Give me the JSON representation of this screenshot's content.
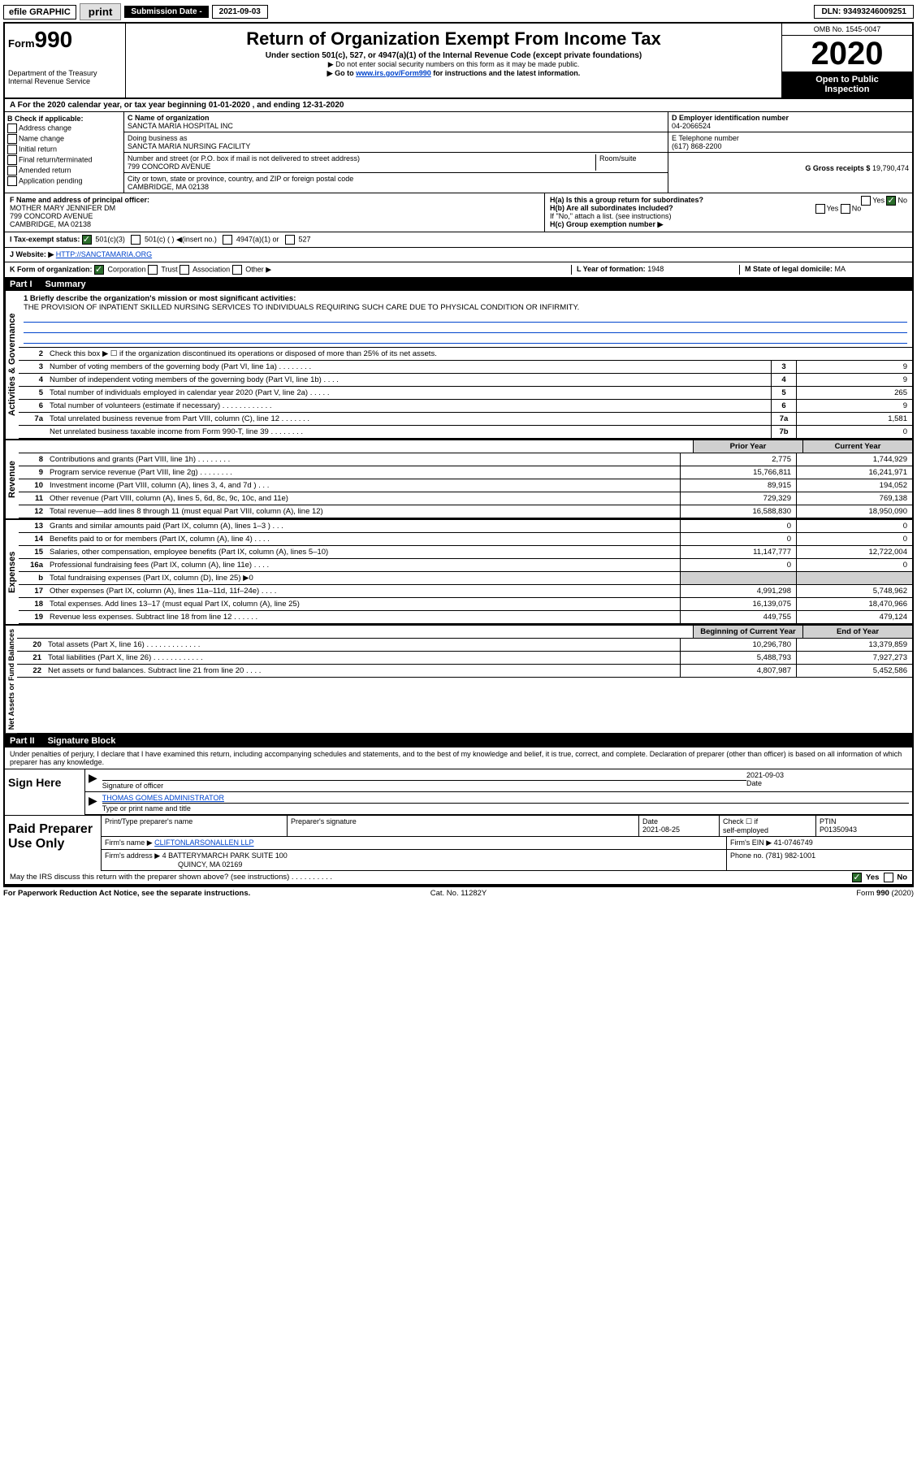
{
  "top": {
    "efile": "efile GRAPHIC",
    "print": "print",
    "sub_label": "Submission Date - ",
    "sub_date": "2021-09-03",
    "dln": "DLN: 93493246009251"
  },
  "header": {
    "form_prefix": "Form",
    "form_num": "990",
    "dept1": "Department of the Treasury",
    "dept2": "Internal Revenue Service",
    "title": "Return of Organization Exempt From Income Tax",
    "sub": "Under section 501(c), 527, or 4947(a)(1) of the Internal Revenue Code (except private foundations)",
    "note1": "▶ Do not enter social security numbers on this form as it may be made public.",
    "note2a": "▶ Go to ",
    "note2_link": "www.irs.gov/Form990",
    "note2b": " for instructions and the latest information.",
    "omb": "OMB No. 1545-0047",
    "year": "2020",
    "open1": "Open to Public",
    "open2": "Inspection"
  },
  "rowA": "A For the 2020 calendar year, or tax year beginning 01-01-2020    , and ending 12-31-2020",
  "b": {
    "label": "B Check if applicable:",
    "items": [
      "Address change",
      "Name change",
      "Initial return",
      "Final return/terminated",
      "Amended return",
      "Application pending"
    ]
  },
  "c": {
    "name_label": "C Name of organization",
    "name": "SANCTA MARIA HOSPITAL INC",
    "dba_label": "Doing business as",
    "dba": "SANCTA MARIA NURSING FACILITY",
    "addr_label": "Number and street (or P.O. box if mail is not delivered to street address)",
    "room_label": "Room/suite",
    "addr": "799 CONCORD AVENUE",
    "city_label": "City or town, state or province, country, and ZIP or foreign postal code",
    "city": "CAMBRIDGE, MA  02138"
  },
  "d": {
    "label": "D Employer identification number",
    "val": "04-2066524"
  },
  "e": {
    "label": "E Telephone number",
    "val": "(617) 868-2200"
  },
  "g": {
    "label": "G Gross receipts $",
    "val": "19,790,474"
  },
  "f": {
    "label": "F  Name and address of principal officer:",
    "line1": "MOTHER MARY JENNIFER DM",
    "line2": "799 CONCORD AVENUE",
    "line3": "CAMBRIDGE, MA  02138"
  },
  "h": {
    "a": "H(a)  Is this a group return for subordinates?",
    "a_yes": "Yes",
    "a_no": "No",
    "b": "H(b)  Are all subordinates included?",
    "b_yes": "Yes",
    "b_no": "No",
    "b_note": "If \"No,\" attach a list. (see instructions)",
    "c": "H(c)  Group exemption number ▶"
  },
  "i": {
    "label": "I    Tax-exempt status:",
    "o1": "501(c)(3)",
    "o2": "501(c) (  ) ◀(insert no.)",
    "o3": "4947(a)(1) or",
    "o4": "527"
  },
  "j": {
    "label": "J    Website: ▶",
    "val": "HTTP://SANCTAMARIA.ORG"
  },
  "k": {
    "label": "K Form of organization:",
    "o1": "Corporation",
    "o2": "Trust",
    "o3": "Association",
    "o4": "Other ▶",
    "l_label": "L Year of formation:",
    "l_val": "1948",
    "m_label": "M State of legal domicile:",
    "m_val": "MA"
  },
  "part1": {
    "pt": "Part I",
    "title": "Summary"
  },
  "summary": {
    "l1_label": "1  Briefly describe the organization's mission or most significant activities:",
    "l1_text": "THE PROVISION OF INPATIENT SKILLED NURSING SERVICES TO INDIVIDUALS REQUIRING SUCH CARE DUE TO PHYSICAL CONDITION OR INFIRMITY.",
    "l2": "Check this box ▶ ☐  if the organization discontinued its operations or disposed of more than 25% of its net assets.",
    "lines_single": [
      {
        "n": "3",
        "d": "Number of voting members of the governing body (Part VI, line 1a)   .    .    .    .    .    .    .    .",
        "b": "3",
        "v": "9"
      },
      {
        "n": "4",
        "d": "Number of independent voting members of the governing body (Part VI, line 1b)   .    .    .    .",
        "b": "4",
        "v": "9"
      },
      {
        "n": "5",
        "d": "Total number of individuals employed in calendar year 2020 (Part V, line 2a)   .    .    .    .    .",
        "b": "5",
        "v": "265"
      },
      {
        "n": "6",
        "d": "Total number of volunteers (estimate if necessary)    .    .    .    .    .    .    .    .    .    .    .    .",
        "b": "6",
        "v": "9"
      },
      {
        "n": "7a",
        "d": "Total unrelated business revenue from Part VIII, column (C), line 12   .    .    .    .    .    .    .",
        "b": "7a",
        "v": "1,581"
      },
      {
        "n": "",
        "d": "Net unrelated business taxable income from Form 990-T, line 39   .    .    .    .    .    .    .    .",
        "b": "7b",
        "v": "0"
      }
    ],
    "yr_prior": "Prior Year",
    "yr_curr": "Current Year",
    "revenue": [
      {
        "n": "8",
        "d": "Contributions and grants (Part VIII, line 1h)   .    .    .    .    .    .    .    .",
        "p": "2,775",
        "c": "1,744,929"
      },
      {
        "n": "9",
        "d": "Program service revenue (Part VIII, line 2g)   .    .    .    .    .    .    .    .",
        "p": "15,766,811",
        "c": "16,241,971"
      },
      {
        "n": "10",
        "d": "Investment income (Part VIII, column (A), lines 3, 4, and 7d )   .    .    .",
        "p": "89,915",
        "c": "194,052"
      },
      {
        "n": "11",
        "d": "Other revenue (Part VIII, column (A), lines 5, 6d, 8c, 9c, 10c, and 11e)",
        "p": "729,329",
        "c": "769,138"
      },
      {
        "n": "12",
        "d": "Total revenue—add lines 8 through 11 (must equal Part VIII, column (A), line 12)",
        "p": "16,588,830",
        "c": "18,950,090"
      }
    ],
    "expenses": [
      {
        "n": "13",
        "d": "Grants and similar amounts paid (Part IX, column (A), lines 1–3 )   .    .    .",
        "p": "0",
        "c": "0"
      },
      {
        "n": "14",
        "d": "Benefits paid to or for members (Part IX, column (A), line 4)   .    .    .    .",
        "p": "0",
        "c": "0"
      },
      {
        "n": "15",
        "d": "Salaries, other compensation, employee benefits (Part IX, column (A), lines 5–10)",
        "p": "11,147,777",
        "c": "12,722,004"
      },
      {
        "n": "16a",
        "d": "Professional fundraising fees (Part IX, column (A), line 11e)   .    .    .    .",
        "p": "0",
        "c": "0"
      },
      {
        "n": "b",
        "d": "Total fundraising expenses (Part IX, column (D), line 25) ▶0",
        "p": "",
        "c": "",
        "shade": true
      },
      {
        "n": "17",
        "d": "Other expenses (Part IX, column (A), lines 11a–11d, 11f–24e)   .    .    .    .",
        "p": "4,991,298",
        "c": "5,748,962"
      },
      {
        "n": "18",
        "d": "Total expenses. Add lines 13–17 (must equal Part IX, column (A), line 25)",
        "p": "16,139,075",
        "c": "18,470,966"
      },
      {
        "n": "19",
        "d": "Revenue less expenses. Subtract line 18 from line 12   .    .    .    .    .    .",
        "p": "449,755",
        "c": "479,124"
      }
    ],
    "na_h1": "Beginning of Current Year",
    "na_h2": "End of Year",
    "netassets": [
      {
        "n": "20",
        "d": "Total assets (Part X, line 16)   .    .    .    .    .    .    .    .    .    .    .    .    .",
        "p": "10,296,780",
        "c": "13,379,859"
      },
      {
        "n": "21",
        "d": "Total liabilities (Part X, line 26)   .    .    .    .    .    .    .    .    .    .    .    .",
        "p": "5,488,793",
        "c": "7,927,273"
      },
      {
        "n": "22",
        "d": "Net assets or fund balances. Subtract line 21 from line 20   .    .    .    .",
        "p": "4,807,987",
        "c": "5,452,586"
      }
    ],
    "side_act": "Activities & Governance",
    "side_rev": "Revenue",
    "side_exp": "Expenses",
    "side_na": "Net Assets or Fund Balances"
  },
  "part2": {
    "pt": "Part II",
    "title": "Signature Block"
  },
  "sig": {
    "penalty": "Under penalties of perjury, I declare that I have examined this return, including accompanying schedules and statements, and to the best of my knowledge and belief, it is true, correct, and complete. Declaration of preparer (other than officer) is based on all information of which preparer has any knowledge.",
    "sign_here": "Sign Here",
    "sig_officer_label": "Signature of officer",
    "date_label": "Date",
    "date": "2021-09-03",
    "name": "THOMAS GOMES  ADMINISTRATOR",
    "name_label": "Type or print name and title"
  },
  "prep": {
    "label": "Paid Preparer Use Only",
    "h1": "Print/Type preparer's name",
    "h2": "Preparer's signature",
    "h3": "Date",
    "h4_a": "Check ☐  if",
    "h4_b": "self-employed",
    "h5": "PTIN",
    "date": "2021-08-25",
    "ptin": "P01350943",
    "firm_label": "Firm's name    ▶",
    "firm": "CLIFTONLARSONALLEN LLP",
    "ein_label": "Firm's EIN ▶",
    "ein": "41-0746749",
    "addr_label": "Firm's address ▶",
    "addr1": "4 BATTERYMARCH PARK SUITE 100",
    "addr2": "QUINCY, MA  02169",
    "phone_label": "Phone no.",
    "phone": "(781) 982-1001"
  },
  "footer": {
    "q": "May the IRS discuss this return with the preparer shown above? (see instructions)    .    .    .    .    .    .    .    .    .    .",
    "yes": "Yes",
    "no": "No",
    "l": "For Paperwork Reduction Act Notice, see the separate instructions.",
    "m": "Cat. No. 11282Y",
    "r": "Form 990 (2020)"
  }
}
